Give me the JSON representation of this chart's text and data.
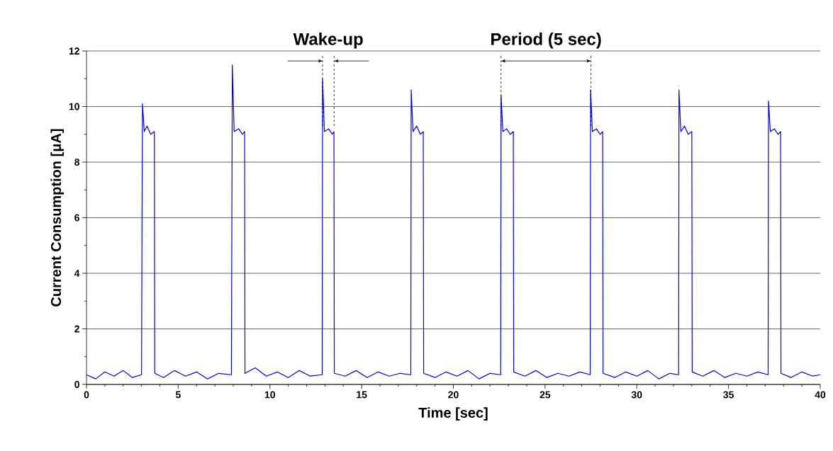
{
  "chart_data": {
    "type": "line",
    "xlabel": "Time [sec]",
    "ylabel": "Current Consumption [μA]",
    "xlim": [
      0,
      40
    ],
    "ylim": [
      0,
      12
    ],
    "xticks": [
      0,
      5,
      10,
      15,
      20,
      25,
      30,
      35,
      40
    ],
    "yticks": [
      0,
      2,
      4,
      6,
      8,
      10,
      12
    ],
    "grid": "y",
    "marker": "none",
    "line_style": "solid",
    "annotations": [
      "Wake-up",
      "Period (5 sec)"
    ],
    "ref_lines": [
      {
        "axis": "x",
        "value": 12.87,
        "label": null,
        "color": "#000000",
        "line_style": "dashed"
      },
      {
        "axis": "x",
        "value": 13.5,
        "label": null,
        "color": "#000000",
        "line_style": "dashed"
      },
      {
        "axis": "x",
        "value": 22.6,
        "label": null,
        "color": "#000000",
        "line_style": "dashed"
      },
      {
        "axis": "x",
        "value": 27.5,
        "label": null,
        "color": "#000000",
        "line_style": "dashed"
      }
    ],
    "series": [
      {
        "color": "#0000ff",
        "x": [
          0,
          0.5,
          1,
          1.5,
          2,
          2.5,
          3.0,
          3.05,
          3.15,
          3.3,
          3.5,
          3.7,
          3.72,
          4.2,
          4.8,
          5.4,
          6.0,
          6.6,
          7.2,
          7.9,
          7.95,
          8.05,
          8.3,
          8.5,
          8.62,
          8.64,
          9.2,
          9.8,
          10.4,
          11.0,
          11.6,
          12.2,
          12.85,
          12.87,
          12.97,
          13.2,
          13.4,
          13.49,
          13.51,
          14.1,
          14.7,
          15.3,
          15.9,
          16.5,
          17.1,
          17.68,
          17.7,
          17.8,
          18.0,
          18.2,
          18.36,
          18.38,
          19.0,
          19.6,
          20.2,
          20.8,
          21.4,
          22.0,
          22.58,
          22.6,
          22.7,
          22.9,
          23.1,
          23.27,
          23.29,
          23.9,
          24.5,
          25.1,
          25.7,
          26.3,
          26.9,
          27.46,
          27.48,
          27.58,
          27.8,
          28.0,
          28.14,
          28.16,
          28.8,
          29.4,
          30.0,
          30.6,
          31.2,
          31.8,
          32.28,
          32.3,
          32.4,
          32.6,
          32.8,
          33.0,
          33.02,
          33.6,
          34.2,
          34.8,
          35.4,
          36.0,
          36.6,
          37.16,
          37.18,
          37.28,
          37.5,
          37.7,
          37.84,
          37.86,
          38.4,
          39.0,
          39.6,
          40
        ],
        "values": [
          0.35,
          0.2,
          0.45,
          0.3,
          0.5,
          0.25,
          0.35,
          10.1,
          9.1,
          9.3,
          9.0,
          9.1,
          0.4,
          0.25,
          0.5,
          0.3,
          0.45,
          0.2,
          0.4,
          0.35,
          11.5,
          9.1,
          9.2,
          9.0,
          9.1,
          0.4,
          0.6,
          0.3,
          0.45,
          0.25,
          0.5,
          0.3,
          0.35,
          11.0,
          9.1,
          9.2,
          9.0,
          9.1,
          0.4,
          0.3,
          0.5,
          0.25,
          0.45,
          0.3,
          0.4,
          0.35,
          10.6,
          9.1,
          9.3,
          9.0,
          9.1,
          0.4,
          0.25,
          0.45,
          0.3,
          0.5,
          0.2,
          0.4,
          0.35,
          10.4,
          9.1,
          9.2,
          9.0,
          9.1,
          0.45,
          0.3,
          0.5,
          0.25,
          0.4,
          0.3,
          0.45,
          0.35,
          10.6,
          9.1,
          9.2,
          9.0,
          9.1,
          0.4,
          0.25,
          0.45,
          0.3,
          0.5,
          0.2,
          0.4,
          0.35,
          10.6,
          9.1,
          9.3,
          9.0,
          9.1,
          0.45,
          0.3,
          0.5,
          0.25,
          0.4,
          0.3,
          0.45,
          0.35,
          10.2,
          9.1,
          9.2,
          9.0,
          9.1,
          0.4,
          0.25,
          0.45,
          0.3,
          0.35
        ]
      }
    ]
  }
}
